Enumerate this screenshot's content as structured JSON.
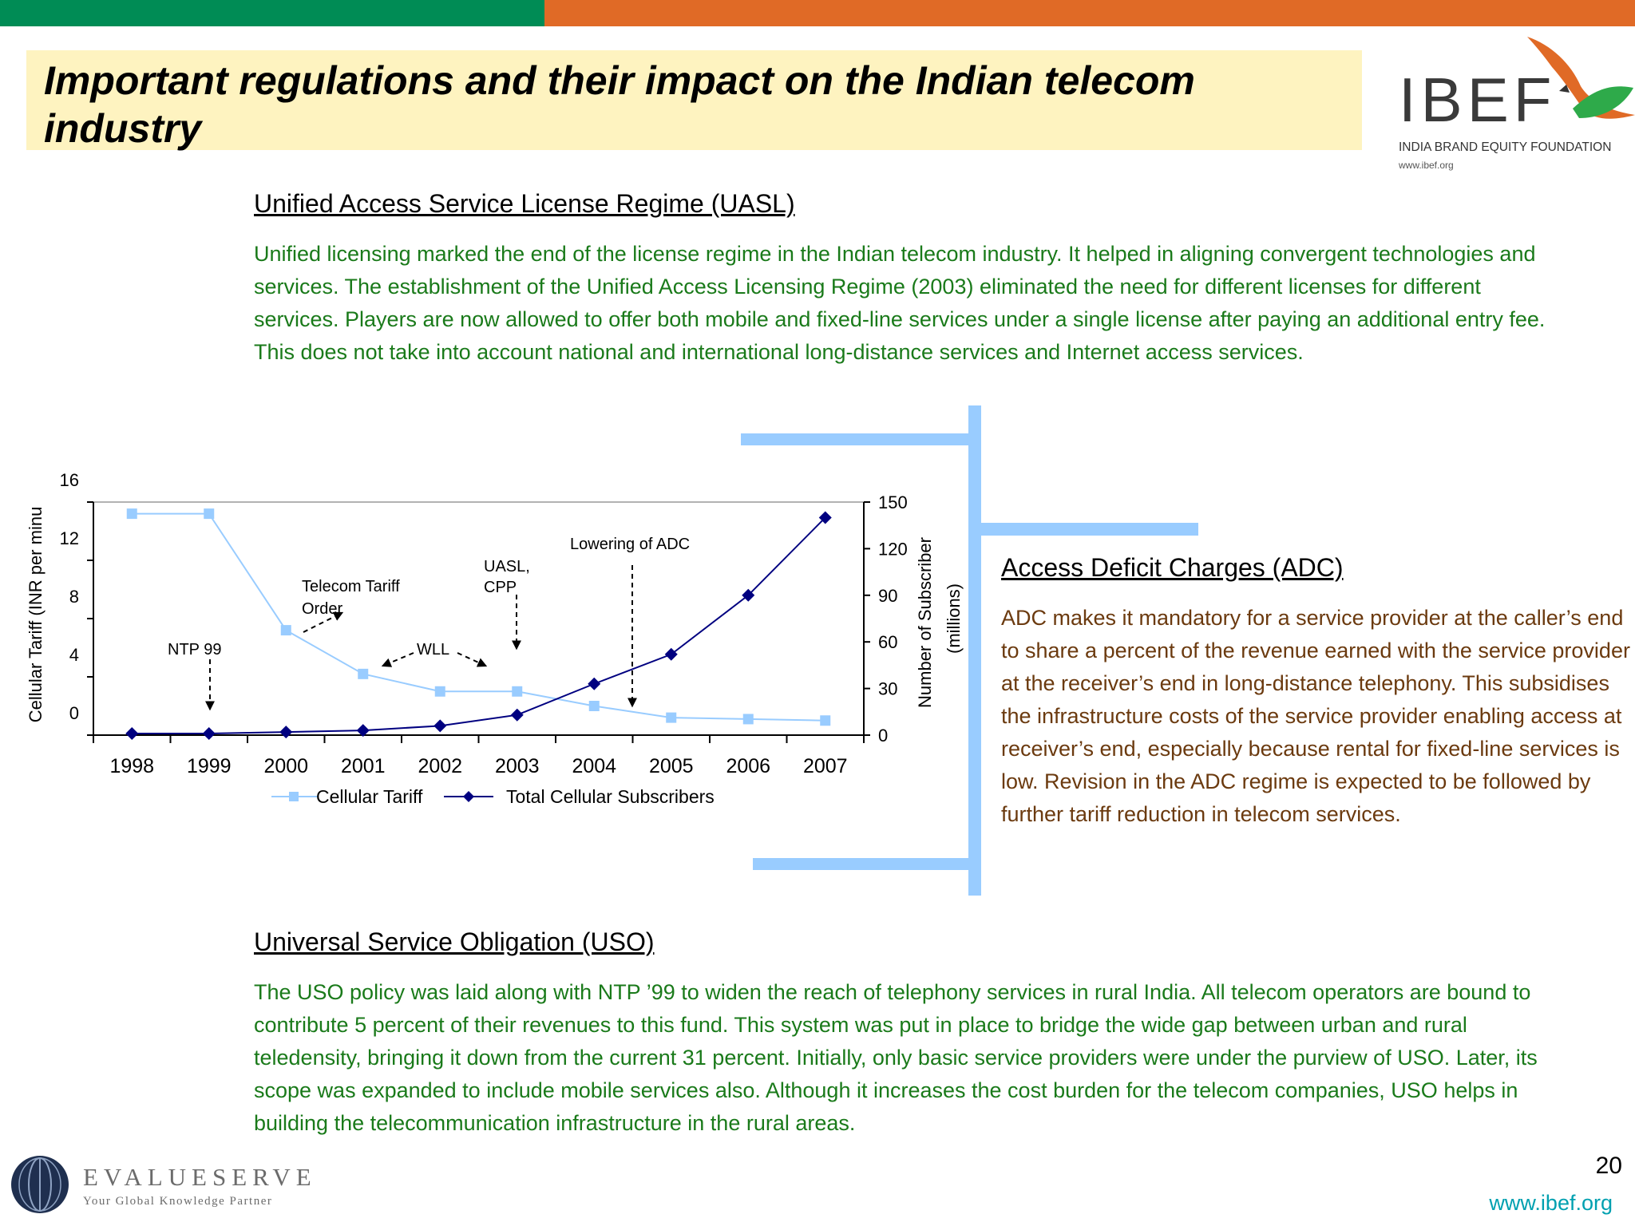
{
  "header": {
    "title": "Important regulations and their impact on the Indian telecom industry",
    "logo_text": "IBEF",
    "logo_subtitle": "INDIA BRAND EQUITY FOUNDATION",
    "logo_url": "www.ibef.org"
  },
  "sections": {
    "uasl": {
      "title": "Unified Access Service License Regime (UASL)",
      "text": "Unified licensing marked the end of the license regime in the Indian telecom industry. It helped in aligning convergent technologies and services. The establishment of the Unified Access Licensing Regime (2003) eliminated the need for different licenses for different services. Players are now allowed to offer both mobile and fixed-line services under a single license after paying an additional entry fee. This does not take into account national and international long-distance services and Internet access services."
    },
    "adc": {
      "title": "Access Deficit Charges (ADC)",
      "text": "ADC makes it mandatory for a service provider at the caller’s end to share a percent of the revenue earned with the service provider at the receiver’s end in long-distance telephony. This subsidises the infrastructure costs of the service provider enabling access at receiver’s end, especially because rental for fixed-line services is low. Revision in the ADC regime is expected to be followed by further tariff reduction in telecom services."
    },
    "uso": {
      "title": "Universal Service Obligation (USO)",
      "text": "The USO policy was laid along with NTP ’99 to widen the reach of telephony services in rural India. All telecom operators are bound to contribute 5 percent of their revenues to this fund. This system was put in place to bridge the wide gap between urban and rural teledensity, bringing it down from the current 31 percent. Initially, only basic service providers were under the purview of USO. Later, its scope was expanded to include mobile services also. Although it increases the cost burden for the telecom companies, USO helps in building the telecommunication infrastructure in the rural areas."
    }
  },
  "chart_data": {
    "type": "line",
    "categories": [
      "1998",
      "1999",
      "2000",
      "2001",
      "2002",
      "2003",
      "2004",
      "2005",
      "2006",
      "2007"
    ],
    "series": [
      {
        "name": "Cellular Tariff",
        "axis": "left",
        "values": [
          15.2,
          15.2,
          7.2,
          4.2,
          3.0,
          3.0,
          2.0,
          1.2,
          1.1,
          1.0
        ],
        "color": "#99CCFF",
        "marker": "square"
      },
      {
        "name": "Total Cellular Subscribers",
        "axis": "right",
        "values": [
          1,
          1,
          2,
          3,
          6,
          13,
          33,
          52,
          90,
          140
        ],
        "color": "#000080",
        "marker": "diamond"
      }
    ],
    "ylabel_left": "Cellular Tariff (INR per minu",
    "ylabel_right_line1": "Number of Subscriber",
    "ylabel_right_line2": "(millions)",
    "ylim_left": [
      0,
      16
    ],
    "yticks_left": [
      "0",
      "4",
      "8",
      "12",
      "16"
    ],
    "ylim_right": [
      0,
      150
    ],
    "yticks_right": [
      "0",
      "30",
      "60",
      "90",
      "120",
      "150"
    ],
    "legend_position": "bottom",
    "annotations": {
      "ntp": "NTP 99",
      "tto_line1": "Telecom Tariff",
      "tto_line2": "Order",
      "wll": "WLL",
      "uasl_line1": "UASL,",
      "uasl_line2": "CPP",
      "adc": "Lowering of ADC"
    }
  },
  "footer": {
    "page_number": "20",
    "url": "www.ibef.org",
    "evalueserve_name": "EVALUESERVE",
    "evalueserve_tagline": "Your Global Knowledge Partner"
  }
}
